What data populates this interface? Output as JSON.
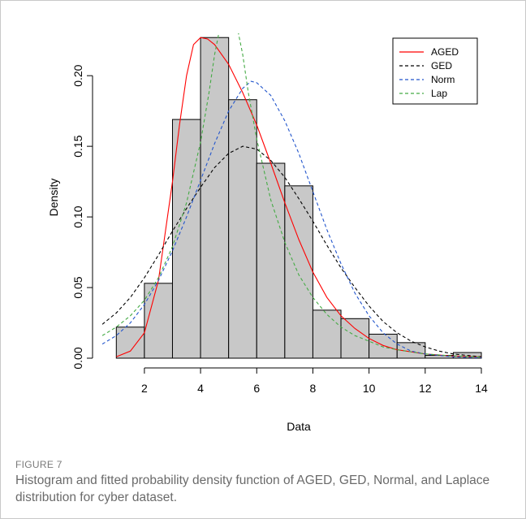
{
  "figure": {
    "label": "FIGURE 7",
    "caption": "Histogram and fitted probability density function of AGED, GED, Normal, and Laplace distribution for cyber dataset."
  },
  "chart_data": {
    "type": "bar",
    "title": "",
    "xlabel": "Data",
    "ylabel": "Density",
    "xlim": [
      0.5,
      14
    ],
    "ylim": [
      0,
      0.23
    ],
    "x_ticks": [
      "2",
      "4",
      "6",
      "8",
      "10",
      "12",
      "14"
    ],
    "y_ticks": [
      "0.00",
      "0.05",
      "0.10",
      "0.15",
      "0.20"
    ],
    "histogram": {
      "bin_edges": [
        1,
        2,
        3,
        4,
        5,
        6,
        7,
        8,
        9,
        10,
        11,
        12,
        13,
        14
      ],
      "densities": [
        0.022,
        0.053,
        0.169,
        0.227,
        0.183,
        0.138,
        0.122,
        0.034,
        0.028,
        0.017,
        0.011,
        0.002,
        0.004
      ],
      "fill": "#c8c8c8"
    },
    "legend_position": "top-right",
    "series": [
      {
        "name": "AGED",
        "color": "#ff0000",
        "style": "solid",
        "x": [
          1,
          1.5,
          2,
          2.5,
          3,
          3.25,
          3.5,
          3.75,
          4,
          4.25,
          4.5,
          5,
          5.5,
          6,
          6.5,
          7,
          7.5,
          8,
          8.5,
          9,
          9.5,
          10,
          10.5,
          11,
          12,
          13,
          14
        ],
        "y": [
          0.001,
          0.005,
          0.018,
          0.055,
          0.125,
          0.165,
          0.2,
          0.222,
          0.227,
          0.226,
          0.222,
          0.208,
          0.188,
          0.165,
          0.138,
          0.11,
          0.084,
          0.061,
          0.043,
          0.03,
          0.021,
          0.014,
          0.009,
          0.006,
          0.003,
          0.0015,
          0.001
        ]
      },
      {
        "name": "GED",
        "color": "#000000",
        "style": "dashed",
        "x": [
          0.5,
          1,
          1.5,
          2,
          2.5,
          3,
          3.5,
          4,
          4.5,
          5,
          5.5,
          6,
          6.5,
          7,
          7.5,
          8,
          8.5,
          9,
          9.5,
          10,
          10.5,
          11,
          11.5,
          12,
          12.5,
          13,
          14
        ],
        "y": [
          0.024,
          0.032,
          0.043,
          0.057,
          0.073,
          0.09,
          0.106,
          0.121,
          0.135,
          0.145,
          0.15,
          0.148,
          0.14,
          0.128,
          0.113,
          0.097,
          0.08,
          0.064,
          0.05,
          0.037,
          0.026,
          0.018,
          0.012,
          0.008,
          0.005,
          0.003,
          0.001
        ]
      },
      {
        "name": "Norm",
        "color": "#2255cc",
        "style": "dashed",
        "x": [
          0.5,
          1,
          1.5,
          2,
          2.5,
          3,
          3.5,
          4,
          4.5,
          5,
          5.5,
          5.8,
          6,
          6.5,
          7,
          7.5,
          8,
          8.5,
          9,
          9.5,
          10,
          10.5,
          11,
          11.5,
          12,
          13,
          14
        ],
        "y": [
          0.01,
          0.016,
          0.025,
          0.038,
          0.055,
          0.076,
          0.1,
          0.126,
          0.152,
          0.175,
          0.191,
          0.196,
          0.195,
          0.186,
          0.168,
          0.145,
          0.118,
          0.091,
          0.067,
          0.046,
          0.03,
          0.018,
          0.01,
          0.005,
          0.003,
          0.001,
          0.0002
        ]
      },
      {
        "name": "Lap",
        "color": "#44aa44",
        "style": "dashed",
        "x": [
          0.5,
          1,
          1.5,
          2,
          2.5,
          3,
          3.5,
          4,
          4.3,
          4.5,
          4.7,
          5.3,
          5.5,
          5.7,
          6,
          6.5,
          7,
          7.5,
          8,
          8.5,
          9,
          9.5,
          10,
          10.5,
          11,
          12,
          13,
          14
        ],
        "y": [
          0.016,
          0.022,
          0.03,
          0.041,
          0.057,
          0.079,
          0.11,
          0.153,
          0.188,
          0.215,
          0.235,
          0.235,
          0.215,
          0.188,
          0.155,
          0.112,
          0.082,
          0.059,
          0.043,
          0.031,
          0.022,
          0.016,
          0.012,
          0.008,
          0.006,
          0.003,
          0.0016,
          0.0008
        ]
      }
    ]
  }
}
